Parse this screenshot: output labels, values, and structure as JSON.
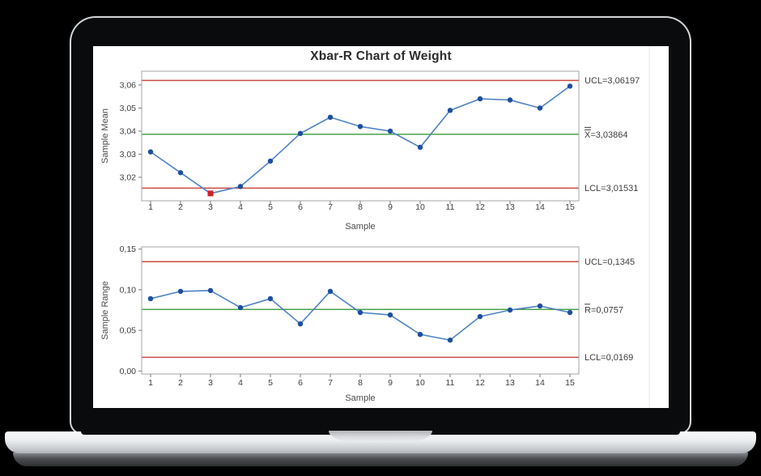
{
  "window": {
    "title": "Xbar-R Chart of Weight"
  },
  "colors": {
    "control_limit": "#cb4b45",
    "center_line": "#47a34b",
    "series_line": "#4f82c2",
    "marker": "#1d4f9e",
    "violation_marker": "#cc2027",
    "plot_border": "#a6a6a6",
    "tick": "#7a7a7a",
    "text": "#3d3d3d",
    "axis_label": "#4a4a4a",
    "divider": "#e9e9e9"
  },
  "chart_data": [
    {
      "type": "line",
      "id": "xbar",
      "title": "Xbar-R Chart of Weight",
      "subtitle": "",
      "xlabel": "Sample",
      "ylabel": "Sample Mean",
      "x": [
        1,
        2,
        3,
        4,
        5,
        6,
        7,
        8,
        9,
        10,
        11,
        12,
        13,
        14,
        15
      ],
      "values": [
        3.031,
        3.022,
        3.013,
        3.016,
        3.027,
        3.039,
        3.046,
        3.042,
        3.04,
        3.033,
        3.049,
        3.054,
        3.0535,
        3.05,
        3.0595
      ],
      "ucl": {
        "value": 3.06197,
        "label": "UCL=3,06197"
      },
      "center": {
        "value": 3.03864,
        "label": "X=3,03864",
        "overbar": "double"
      },
      "lcl": {
        "value": 3.01531,
        "label": "LCL=3,01531"
      },
      "yticks": [
        {
          "value": 3.06,
          "label": "3,06"
        },
        {
          "value": 3.05,
          "label": "3,05"
        },
        {
          "value": 3.04,
          "label": "3,04"
        },
        {
          "value": 3.03,
          "label": "3,03"
        },
        {
          "value": 3.02,
          "label": "3,02"
        }
      ],
      "ylim": [
        3.00982,
        3.06596
      ],
      "violations": [
        3
      ],
      "grid": false,
      "legend_position": "right"
    },
    {
      "type": "line",
      "id": "r",
      "title": "",
      "subtitle": "",
      "xlabel": "Sample",
      "ylabel": "Sample Range",
      "x": [
        1,
        2,
        3,
        4,
        5,
        6,
        7,
        8,
        9,
        10,
        11,
        12,
        13,
        14,
        15
      ],
      "values": [
        0.089,
        0.098,
        0.099,
        0.078,
        0.089,
        0.058,
        0.098,
        0.072,
        0.069,
        0.045,
        0.038,
        0.067,
        0.075,
        0.08,
        0.072
      ],
      "ucl": {
        "value": 0.1345,
        "label": "UCL=0,1345"
      },
      "center": {
        "value": 0.0757,
        "label": "R=0,0757",
        "overbar": "single"
      },
      "lcl": {
        "value": 0.0169,
        "label": "LCL=0,0169"
      },
      "yticks": [
        {
          "value": 0.15,
          "label": "0,15"
        },
        {
          "value": 0.1,
          "label": "0,10"
        },
        {
          "value": 0.05,
          "label": "0,05"
        },
        {
          "value": 0.0,
          "label": "0,00"
        }
      ],
      "ylim": [
        -0.0037,
        0.1527
      ],
      "violations": [],
      "grid": false,
      "legend_position": "right"
    }
  ]
}
